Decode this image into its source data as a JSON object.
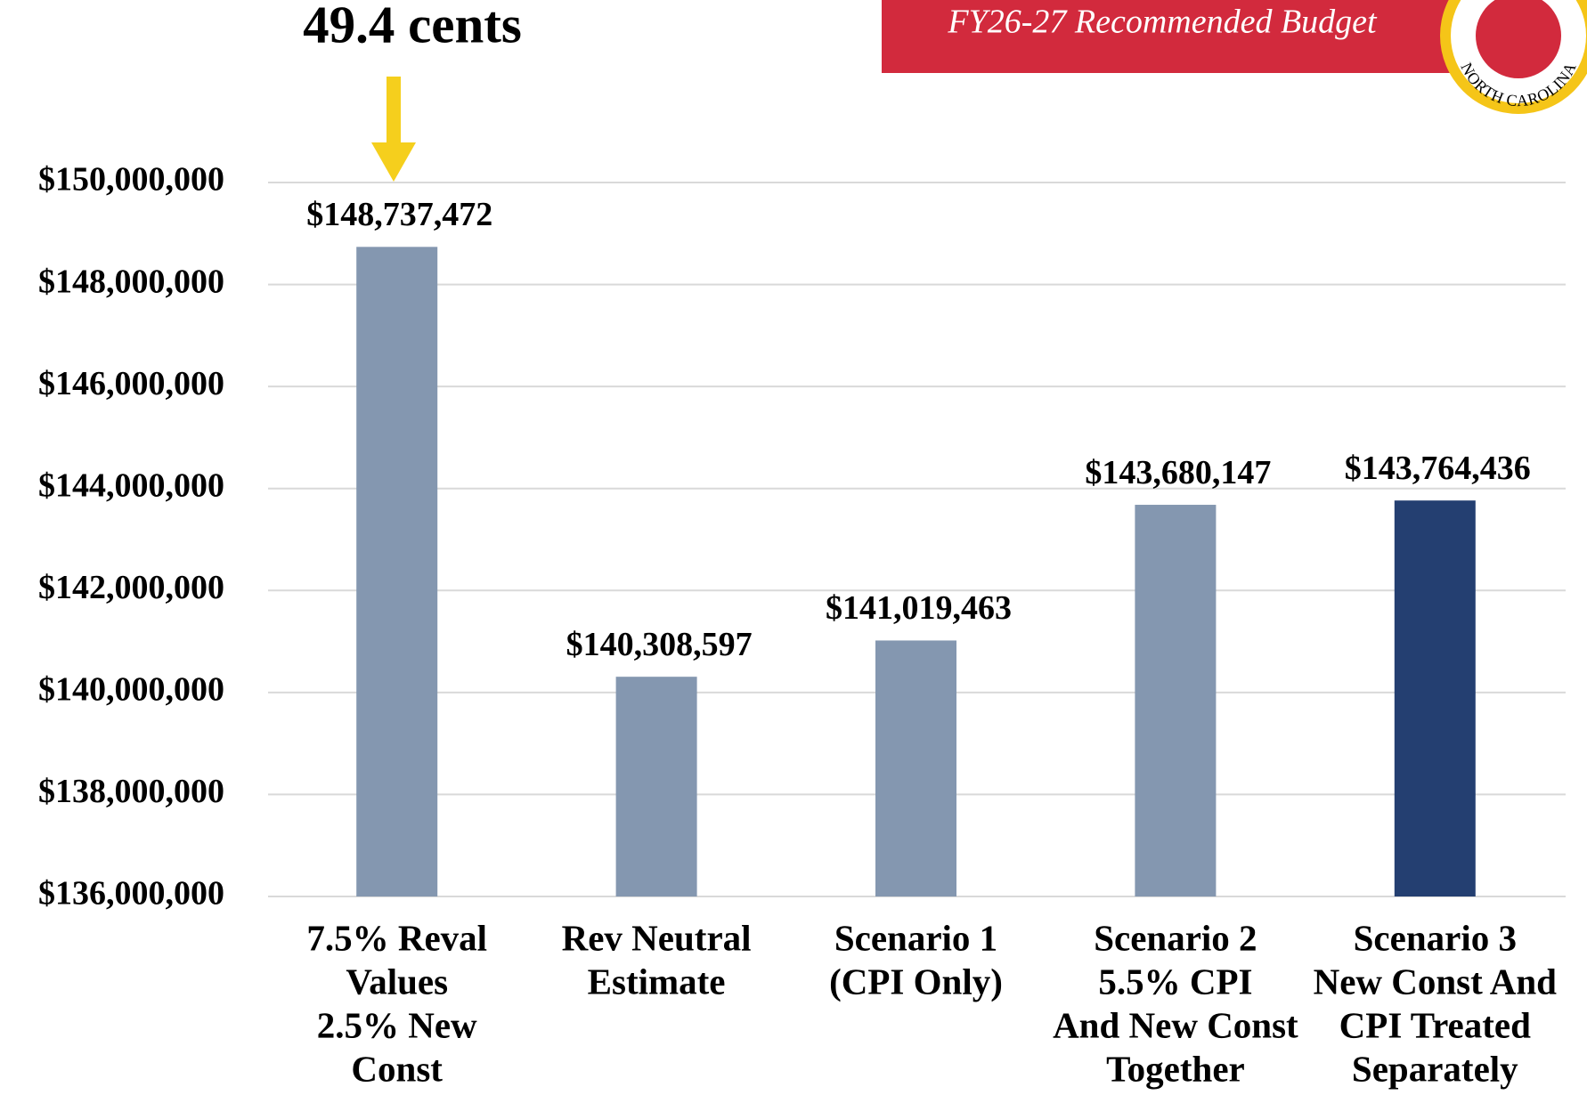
{
  "header": {
    "banner": "FY26-27 Recommended Budget",
    "seal_text": "NORTH CAROLINA"
  },
  "chart_data": {
    "type": "bar",
    "annotation": "49.4 cents",
    "categories": [
      [
        "7.5% Reval",
        "Values",
        "2.5% New",
        "Const"
      ],
      [
        "Rev Neutral",
        "Estimate"
      ],
      [
        "Scenario 1",
        "(CPI Only)"
      ],
      [
        "Scenario 2",
        "5.5% CPI",
        "And New Const",
        "Together"
      ],
      [
        "Scenario 3",
        "New Const And",
        "CPI Treated",
        "Separately"
      ]
    ],
    "values": [
      148737472,
      140308597,
      141019463,
      143680147,
      143764436
    ],
    "value_labels": [
      "$148,737,472",
      "$140,308,597",
      "$141,019,463",
      "$143,680,147",
      "$143,764,436"
    ],
    "colors": [
      "#8497b0",
      "#8497b0",
      "#8497b0",
      "#8497b0",
      "#243f71"
    ],
    "ylim": [
      136000000,
      150000000
    ],
    "yticks": [
      {
        "value": 136000000,
        "label": "$136,000,000"
      },
      {
        "value": 138000000,
        "label": "$138,000,000"
      },
      {
        "value": 140000000,
        "label": "$140,000,000"
      },
      {
        "value": 142000000,
        "label": "$142,000,000"
      },
      {
        "value": 144000000,
        "label": "$144,000,000"
      },
      {
        "value": 146000000,
        "label": "$146,000,000"
      },
      {
        "value": 148000000,
        "label": "$148,000,000"
      },
      {
        "value": 150000000,
        "label": "$150,000,000"
      }
    ],
    "grid": true
  }
}
